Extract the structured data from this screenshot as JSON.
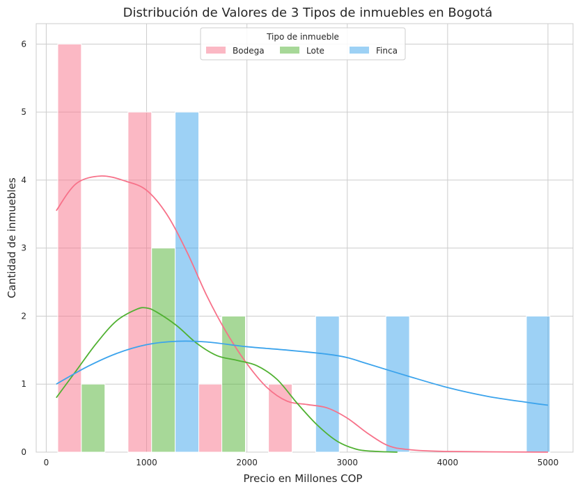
{
  "chart_data": {
    "type": "bar",
    "title": "Distribución de Valores de 3 Tipos de inmuebles en Bogotá",
    "xlabel": "Precio en Millones COP",
    "ylabel": "Cantidad de inmuebles",
    "xlim": [
      -100,
      5250
    ],
    "ylim": [
      0,
      6.3
    ],
    "xticks": [
      0,
      1000,
      2000,
      3000,
      4000,
      5000
    ],
    "yticks": [
      0,
      1,
      2,
      3,
      4,
      5,
      6
    ],
    "grid": true,
    "legend": {
      "title": "Tipo de inmueble",
      "placement": "top-center"
    },
    "series": [
      {
        "name": "Bodega",
        "color": "#f77189",
        "bars": [
          {
            "x0": 115,
            "x1": 350,
            "count": 6
          },
          {
            "x0": 815,
            "x1": 1050,
            "count": 5
          },
          {
            "x0": 1515,
            "x1": 1750,
            "count": 1
          },
          {
            "x0": 2215,
            "x1": 2450,
            "count": 1
          }
        ],
        "kde": [
          [
            100,
            3.55
          ],
          [
            300,
            3.95
          ],
          [
            550,
            4.06
          ],
          [
            800,
            3.98
          ],
          [
            1000,
            3.85
          ],
          [
            1200,
            3.5
          ],
          [
            1400,
            2.95
          ],
          [
            1600,
            2.3
          ],
          [
            1800,
            1.75
          ],
          [
            2000,
            1.3
          ],
          [
            2200,
            0.95
          ],
          [
            2400,
            0.75
          ],
          [
            2600,
            0.7
          ],
          [
            2800,
            0.65
          ],
          [
            3000,
            0.5
          ],
          [
            3200,
            0.28
          ],
          [
            3400,
            0.1
          ],
          [
            3600,
            0.04
          ],
          [
            4000,
            0.01
          ],
          [
            5000,
            0
          ]
        ]
      },
      {
        "name": "Lote",
        "color": "#50b131",
        "bars": [
          {
            "x0": 350,
            "x1": 585,
            "count": 1
          },
          {
            "x0": 1050,
            "x1": 1285,
            "count": 3
          },
          {
            "x0": 1750,
            "x1": 1985,
            "count": 2
          }
        ],
        "kde": [
          [
            100,
            0.8
          ],
          [
            300,
            1.2
          ],
          [
            500,
            1.6
          ],
          [
            700,
            1.93
          ],
          [
            900,
            2.1
          ],
          [
            1000,
            2.12
          ],
          [
            1100,
            2.06
          ],
          [
            1300,
            1.86
          ],
          [
            1500,
            1.6
          ],
          [
            1700,
            1.42
          ],
          [
            1900,
            1.35
          ],
          [
            2100,
            1.27
          ],
          [
            2300,
            1.07
          ],
          [
            2500,
            0.72
          ],
          [
            2700,
            0.4
          ],
          [
            2900,
            0.16
          ],
          [
            3100,
            0.04
          ],
          [
            3300,
            0.01
          ],
          [
            3500,
            0
          ]
        ]
      },
      {
        "name": "Finca",
        "color": "#3ba3ec",
        "bars": [
          {
            "x0": 1285,
            "x1": 1520,
            "count": 5
          },
          {
            "x0": 2685,
            "x1": 2920,
            "count": 2
          },
          {
            "x0": 3385,
            "x1": 3620,
            "count": 2
          },
          {
            "x0": 4785,
            "x1": 5020,
            "count": 2
          }
        ],
        "kde": [
          [
            100,
            1.0
          ],
          [
            400,
            1.25
          ],
          [
            700,
            1.45
          ],
          [
            1000,
            1.58
          ],
          [
            1300,
            1.63
          ],
          [
            1600,
            1.62
          ],
          [
            2000,
            1.55
          ],
          [
            2400,
            1.5
          ],
          [
            2800,
            1.44
          ],
          [
            3000,
            1.39
          ],
          [
            3200,
            1.3
          ],
          [
            3600,
            1.12
          ],
          [
            4000,
            0.95
          ],
          [
            4400,
            0.82
          ],
          [
            4800,
            0.73
          ],
          [
            5000,
            0.69
          ]
        ]
      }
    ]
  }
}
